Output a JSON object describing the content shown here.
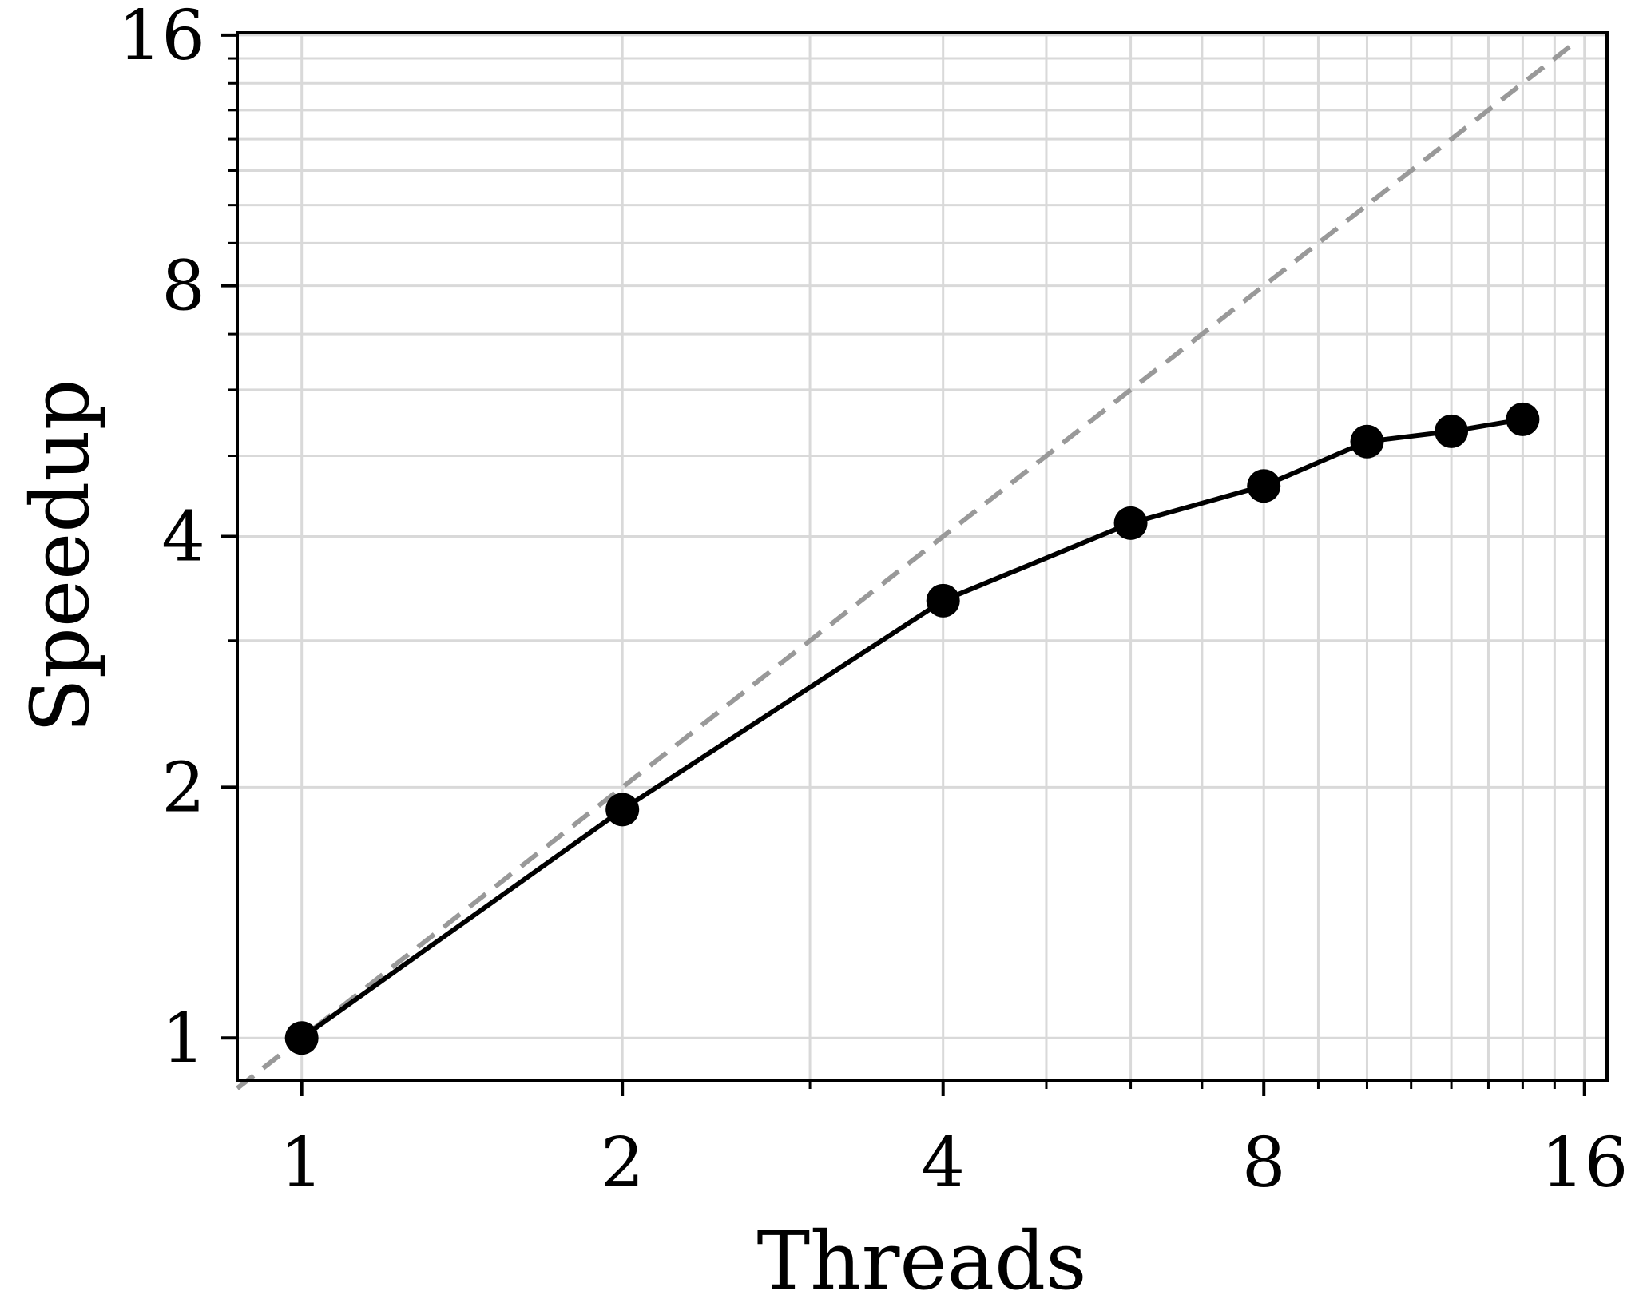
{
  "chart_data": {
    "type": "line",
    "xlabel": "Threads",
    "ylabel": "Speedup",
    "x_scale": "log2",
    "y_scale": "log2",
    "xlim": [
      0.87,
      16.8
    ],
    "ylim": [
      0.89,
      16.1
    ],
    "xticks": [
      1,
      2,
      4,
      8,
      16
    ],
    "xtick_labels": [
      "1",
      "2",
      "4",
      "8",
      "16"
    ],
    "yticks": [
      1,
      2,
      4,
      8,
      16
    ],
    "ytick_labels": [
      "1",
      "2",
      "4",
      "8",
      "16"
    ],
    "grid": true,
    "series": [
      {
        "style": "solid",
        "marker": "circle",
        "color": "#000000",
        "x": [
          1,
          2,
          4,
          6,
          8,
          10,
          12,
          14
        ],
        "y": [
          1.0,
          1.88,
          3.35,
          4.15,
          4.6,
          5.2,
          5.35,
          5.53
        ]
      },
      {
        "style": "dashed",
        "color": "#999999",
        "x": [
          0.87,
          15.8
        ],
        "y": [
          0.87,
          15.8
        ]
      }
    ]
  }
}
